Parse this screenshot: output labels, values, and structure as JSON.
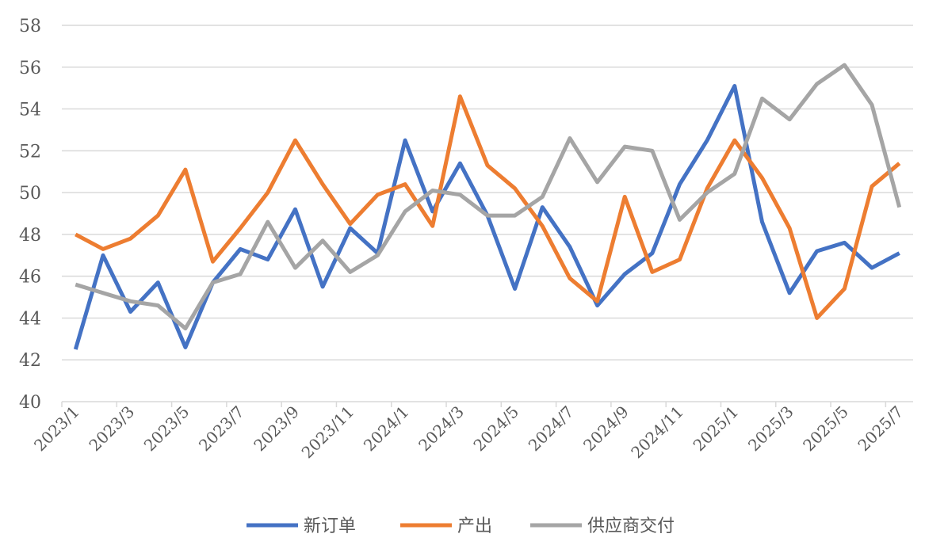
{
  "chart_data": {
    "type": "line",
    "title": "",
    "xlabel": "",
    "ylabel": "",
    "ylim": [
      40,
      58
    ],
    "yticks": [
      40,
      42,
      44,
      46,
      48,
      50,
      52,
      54,
      56,
      58
    ],
    "grid": "horizontal",
    "legend_position": "bottom",
    "x": [
      "2023/1",
      "2023/2",
      "2023/3",
      "2023/4",
      "2023/5",
      "2023/6",
      "2023/7",
      "2023/8",
      "2023/9",
      "2023/10",
      "2023/11",
      "2023/12",
      "2024/1",
      "2024/2",
      "2024/3",
      "2024/4",
      "2024/5",
      "2024/6",
      "2024/7",
      "2024/8",
      "2024/9",
      "2024/10",
      "2024/11",
      "2024/12",
      "2025/1",
      "2025/2",
      "2025/3",
      "2025/4",
      "2025/5",
      "2025/6",
      "2025/7"
    ],
    "x_tick_labels": [
      "2023/1",
      "2023/3",
      "2023/5",
      "2023/7",
      "2023/9",
      "2023/11",
      "2024/1",
      "2024/3",
      "2024/5",
      "2024/7",
      "2024/9",
      "2024/11",
      "2025/1",
      "2025/3",
      "2025/5",
      "2025/7"
    ],
    "series": [
      {
        "name": "新订单",
        "color": "#4472c4",
        "values": [
          42.5,
          47.0,
          44.3,
          45.7,
          42.6,
          45.7,
          47.3,
          46.8,
          49.2,
          45.5,
          48.3,
          47.1,
          52.5,
          49.1,
          51.4,
          48.9,
          45.4,
          49.3,
          47.4,
          44.6,
          46.1,
          47.1,
          50.4,
          52.5,
          55.1,
          48.6,
          45.2,
          47.2,
          47.6,
          46.4,
          47.1
        ]
      },
      {
        "name": "产出",
        "color": "#ed7d31",
        "values": [
          48.0,
          47.3,
          47.8,
          48.9,
          51.1,
          46.7,
          48.3,
          50.0,
          52.5,
          50.4,
          48.5,
          49.9,
          50.4,
          48.4,
          54.6,
          51.3,
          50.2,
          48.4,
          45.9,
          44.8,
          49.8,
          46.2,
          46.8,
          50.2,
          52.5,
          50.7,
          48.3,
          44.0,
          45.4,
          50.3,
          51.4
        ]
      },
      {
        "name": "供应商交付",
        "color": "#a5a5a5",
        "values": [
          45.6,
          45.2,
          44.8,
          44.6,
          43.5,
          45.7,
          46.1,
          48.6,
          46.4,
          47.7,
          46.2,
          47.0,
          49.1,
          50.1,
          49.9,
          48.9,
          48.9,
          49.8,
          52.6,
          50.5,
          52.2,
          52.0,
          48.7,
          50.0,
          50.9,
          54.5,
          53.5,
          55.2,
          56.1,
          54.2,
          49.3
        ]
      }
    ]
  }
}
